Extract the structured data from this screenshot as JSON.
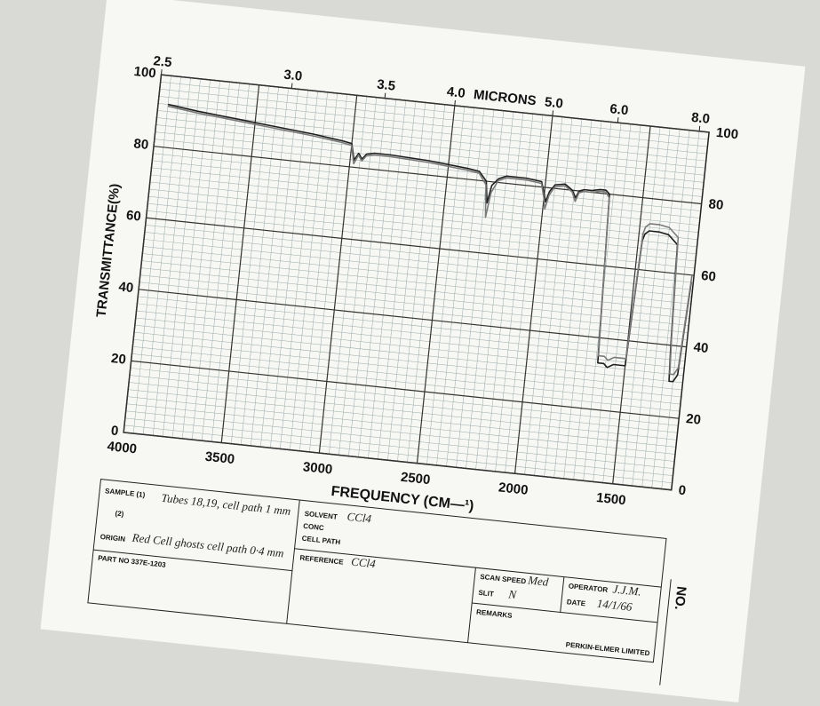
{
  "chart_data": {
    "type": "line",
    "y_label": "TRANSMITTANCE(%)",
    "x_label": "FREQUENCY (CM—¹)",
    "x2_label": "MICRONS",
    "xlim": [
      4000,
      1200
    ],
    "xticks": [
      4000,
      3500,
      3000,
      2500,
      2000,
      1500
    ],
    "x2ticks": [
      2.5,
      {
        "value": 3,
        "label": "3.0"
      },
      3.5,
      {
        "value": 4,
        "label": "4.0"
      },
      {
        "value": 5,
        "label": "5.0"
      },
      {
        "value": 6,
        "label": "6.0"
      },
      {
        "value": 8,
        "label": "8.0"
      }
    ],
    "ylim": [
      0,
      100
    ],
    "yticks": [
      0,
      20,
      40,
      60,
      80,
      100
    ],
    "grid": true,
    "x": [
      3950,
      3800,
      3600,
      3400,
      3200,
      3050,
      3000,
      2980,
      2960,
      2940,
      2920,
      2880,
      2800,
      2600,
      2400,
      2340,
      2300,
      2285,
      2270,
      2240,
      2200,
      2100,
      2020,
      2000,
      1990,
      1975,
      1950,
      1900,
      1860,
      1840,
      1825,
      1800,
      1760,
      1720,
      1690,
      1670,
      1640,
      1610,
      1600,
      1590,
      1560,
      1500,
      1480,
      1470,
      1450,
      1400,
      1350,
      1300,
      1280,
      1270,
      1250,
      1230,
      1210
    ],
    "series": [
      {
        "color": "#1e1e1e",
        "values": [
          92,
          91,
          90,
          89,
          88,
          87,
          86.5,
          82,
          84,
          82.5,
          84,
          84.5,
          84.5,
          84,
          83,
          82.5,
          80,
          74,
          79,
          81,
          82,
          82,
          81.5,
          78,
          76,
          79,
          81,
          81.5,
          80,
          78,
          80,
          80.5,
          80.5,
          81,
          81,
          80,
          33,
          33,
          32.5,
          32,
          33,
          33,
          68,
          70,
          71,
          71,
          70.5,
          68,
          40,
          30,
          30,
          32,
          58
        ]
      },
      {
        "color": "#7a7a7a",
        "values": [
          91.5,
          90.5,
          89.5,
          88.5,
          87.5,
          86.5,
          86,
          81,
          83.5,
          82,
          83.5,
          84,
          84,
          83.5,
          82.5,
          82,
          79,
          70,
          77,
          80.5,
          81.5,
          81.5,
          81,
          77,
          74,
          78,
          80.5,
          81,
          79.5,
          77,
          79.5,
          80,
          80,
          80.5,
          80.5,
          79,
          35,
          35,
          34.5,
          34,
          35,
          35,
          70,
          72,
          73,
          73,
          72.5,
          70,
          42,
          32,
          32,
          34,
          60
        ]
      }
    ]
  },
  "form": {
    "sample_label": "SAMPLE (1)",
    "sample_1": "Tubes 18,19, cell path 1 mm",
    "sample_2_label": "(2)",
    "origin_label": "ORIGIN",
    "origin": "Red Cell ghosts  cell path 0·4 mm",
    "part_no": "PART NO 337E-1203",
    "solvent_label": "SOLVENT",
    "solvent": "CCl4",
    "conc_label": "CONC",
    "cell_path_label": "CELL PATH",
    "reference_label": "REFERENCE",
    "reference": "CCl4",
    "scan_speed_label": "SCAN SPEED",
    "scan_speed": "Med",
    "slit_label": "SLIT",
    "slit": "N",
    "operator_label": "OPERATOR",
    "operator": "J.J.M.",
    "date_label": "DATE",
    "date": "14/1/66",
    "remarks_label": "REMARKS",
    "maker": "PERKIN-ELMER LIMITED",
    "no_label": "NO."
  }
}
